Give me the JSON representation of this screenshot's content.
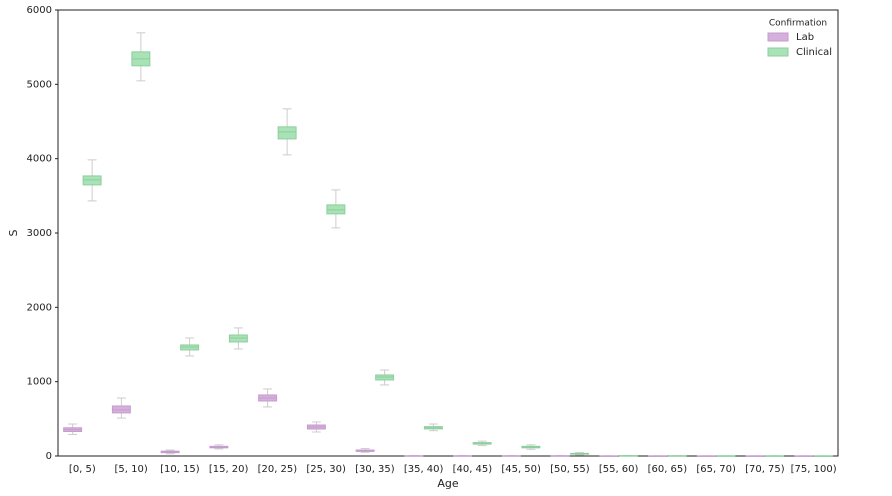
{
  "chart_data": {
    "type": "box",
    "xlabel": "Age",
    "ylabel": "S",
    "categories": [
      "[0, 5)",
      "[5, 10)",
      "[10, 15)",
      "[15, 20)",
      "[20, 25)",
      "[25, 30)",
      "[30, 35)",
      "[35, 40)",
      "[40, 45)",
      "[45, 50)",
      "[50, 55)",
      "[55, 60)",
      "[60, 65)",
      "[65, 70)",
      "[70, 75)",
      "[75, 100)"
    ],
    "ylim": [
      0,
      6000
    ],
    "yticks": [
      0,
      1000,
      2000,
      3000,
      4000,
      5000,
      6000
    ],
    "legend_title": "Confirmation",
    "legend_loc": "upper right",
    "series": [
      {
        "name": "Lab",
        "color": "#d6b0dd",
        "edge": "#c49ccd",
        "whislo": [
          290,
          510,
          30,
          95,
          660,
          323,
          50,
          0,
          0,
          0,
          0,
          0,
          0,
          0,
          0,
          0
        ],
        "q1": [
          330,
          580,
          45,
          110,
          740,
          363,
          62,
          1,
          1,
          1,
          1,
          0,
          0,
          0,
          0,
          0
        ],
        "med": [
          355,
          620,
          55,
          120,
          780,
          390,
          70,
          2,
          2,
          2,
          2,
          1,
          1,
          1,
          1,
          1
        ],
        "q3": [
          380,
          673,
          65,
          130,
          821,
          417,
          80,
          3,
          3,
          3,
          3,
          1,
          1,
          1,
          1,
          1
        ],
        "whishi": [
          430,
          780,
          80,
          150,
          902,
          458,
          100,
          5,
          5,
          5,
          5,
          2,
          2,
          2,
          2,
          2
        ]
      },
      {
        "name": "Clinical",
        "color": "#a8e2b6",
        "edge": "#8ccf9c",
        "whislo": [
          3432,
          5047,
          1346,
          1440,
          4051,
          3069,
          956,
          340,
          140,
          90,
          15,
          1,
          0,
          0,
          0,
          0
        ],
        "q1": [
          3647,
          5249,
          1427,
          1534,
          4266,
          3257,
          1023,
          365,
          160,
          110,
          25,
          2,
          1,
          1,
          0,
          0
        ],
        "med": [
          3715,
          5343,
          1467,
          1588,
          4360,
          3311,
          1063,
          380,
          170,
          120,
          30,
          3,
          2,
          1,
          1,
          1
        ],
        "q3": [
          3768,
          5437,
          1494,
          1628,
          4428,
          3378,
          1090,
          395,
          180,
          130,
          35,
          4,
          3,
          2,
          2,
          1
        ],
        "whishi": [
          3984,
          5693,
          1588,
          1723,
          4670,
          3580,
          1157,
          430,
          200,
          150,
          45,
          6,
          4,
          3,
          3,
          2
        ]
      }
    ]
  }
}
